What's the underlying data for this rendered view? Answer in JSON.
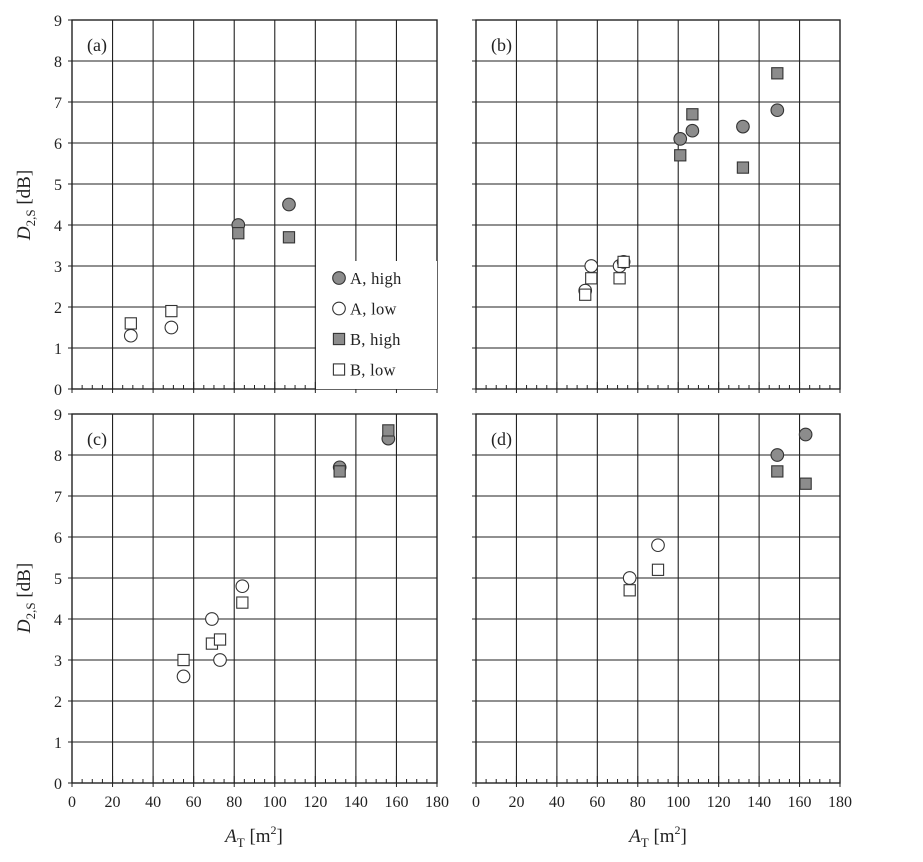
{
  "chart_data": {
    "type": "scatter",
    "xlim": [
      0,
      180
    ],
    "ylim": [
      0,
      9
    ],
    "xticks": [
      0,
      20,
      40,
      60,
      80,
      100,
      120,
      140,
      160,
      180
    ],
    "yticks": [
      0,
      1,
      2,
      3,
      4,
      5,
      6,
      7,
      8,
      9
    ],
    "grid": true,
    "xlabel": {
      "main": "A",
      "sub": "T",
      "rest": " [m",
      "sup": "2",
      "close": "]"
    },
    "ylabel": {
      "main": "D",
      "sub": "2,S",
      "rest": " [dB]"
    },
    "legend": {
      "placement": "panel (a), lower-right",
      "entries": [
        {
          "label": "A, high",
          "marker": "circle",
          "fill": "#8c8c8c"
        },
        {
          "label": "A, low",
          "marker": "circle",
          "fill": "#ffffff"
        },
        {
          "label": "B, high",
          "marker": "square",
          "fill": "#8c8c8c"
        },
        {
          "label": "B, low",
          "marker": "square",
          "fill": "#ffffff"
        }
      ]
    },
    "panels": [
      {
        "label": "(a)",
        "series": [
          {
            "name": "A, high",
            "points": [
              [
                82,
                4.0
              ],
              [
                107,
                4.5
              ]
            ]
          },
          {
            "name": "A, low",
            "points": [
              [
                29,
                1.3
              ],
              [
                49,
                1.5
              ]
            ]
          },
          {
            "name": "B, high",
            "points": [
              [
                82,
                3.8
              ],
              [
                107,
                3.7
              ]
            ]
          },
          {
            "name": "B, low",
            "points": [
              [
                29,
                1.6
              ],
              [
                49,
                1.9
              ]
            ]
          }
        ]
      },
      {
        "label": "(b)",
        "series": [
          {
            "name": "A, high",
            "points": [
              [
                101,
                6.1
              ],
              [
                107,
                6.3
              ],
              [
                132,
                6.4
              ],
              [
                149,
                6.8
              ]
            ]
          },
          {
            "name": "A, low",
            "points": [
              [
                54,
                2.4
              ],
              [
                57,
                3.0
              ],
              [
                71,
                3.0
              ],
              [
                73,
                3.1
              ]
            ]
          },
          {
            "name": "B, high",
            "points": [
              [
                101,
                5.7
              ],
              [
                107,
                6.7
              ],
              [
                132,
                5.4
              ],
              [
                149,
                7.7
              ]
            ]
          },
          {
            "name": "B, low",
            "points": [
              [
                54,
                2.3
              ],
              [
                57,
                2.7
              ],
              [
                71,
                2.7
              ],
              [
                73,
                3.1
              ]
            ]
          }
        ]
      },
      {
        "label": "(c)",
        "series": [
          {
            "name": "A, high",
            "points": [
              [
                132,
                7.7
              ],
              [
                156,
                8.4
              ]
            ]
          },
          {
            "name": "A, low",
            "points": [
              [
                55,
                2.6
              ],
              [
                69,
                4.0
              ],
              [
                73,
                3.0
              ],
              [
                84,
                4.8
              ]
            ]
          },
          {
            "name": "B, high",
            "points": [
              [
                132,
                7.6
              ],
              [
                156,
                8.6
              ]
            ]
          },
          {
            "name": "B, low",
            "points": [
              [
                55,
                3.0
              ],
              [
                69,
                3.4
              ],
              [
                73,
                3.5
              ],
              [
                84,
                4.4
              ]
            ]
          }
        ]
      },
      {
        "label": "(d)",
        "series": [
          {
            "name": "A, high",
            "points": [
              [
                149,
                8.0
              ],
              [
                163,
                8.5
              ]
            ]
          },
          {
            "name": "A, low",
            "points": [
              [
                76,
                5.0
              ],
              [
                90,
                5.8
              ]
            ]
          },
          {
            "name": "B, high",
            "points": [
              [
                149,
                7.6
              ],
              [
                163,
                7.3
              ]
            ]
          },
          {
            "name": "B, low",
            "points": [
              [
                76,
                4.7
              ],
              [
                90,
                5.2
              ]
            ]
          }
        ]
      }
    ]
  },
  "colors": {
    "dark_marker": "#8c8c8c",
    "light_marker": "#ffffff",
    "marker_stroke": "#333333",
    "grid": "#222222",
    "frame": "#222222"
  }
}
